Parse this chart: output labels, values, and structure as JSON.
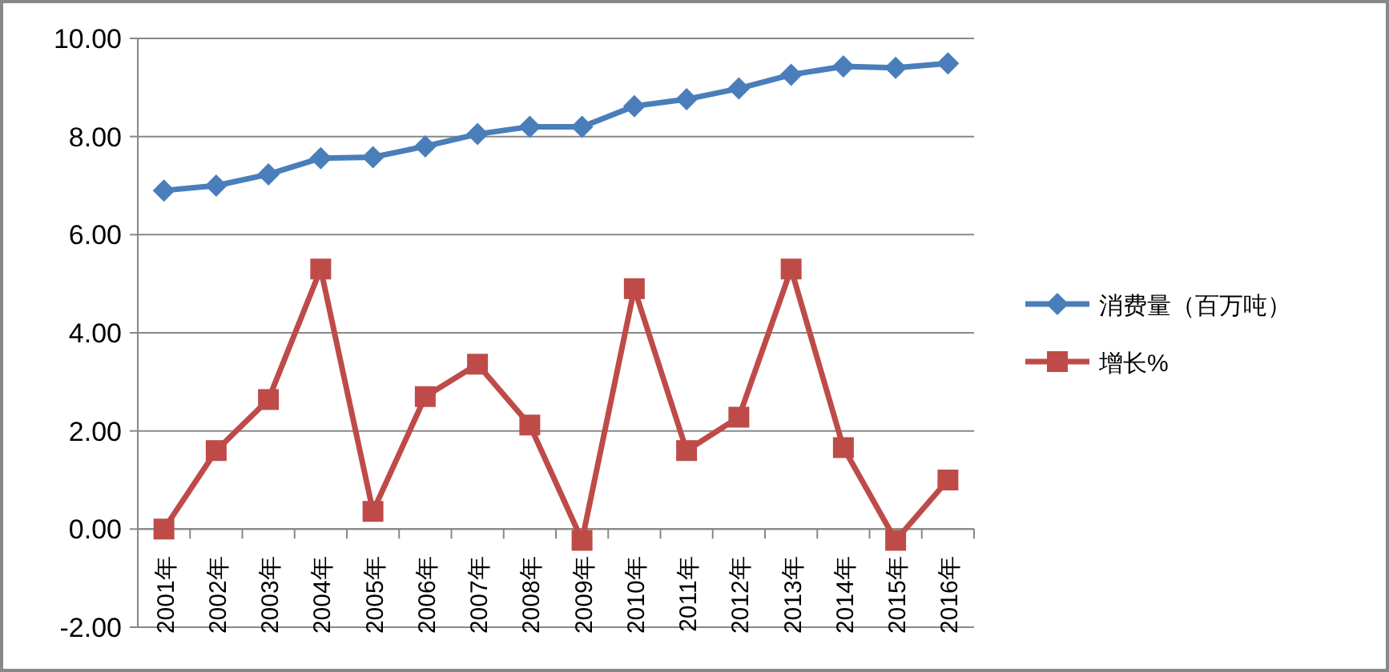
{
  "chart_data": {
    "type": "line",
    "categories": [
      "2001年",
      "2002年",
      "2003年",
      "2004年",
      "2005年",
      "2006年",
      "2007年",
      "2008年",
      "2009年",
      "2010年",
      "2011年",
      "2012年",
      "2013年",
      "2014年",
      "2015年",
      "2016年"
    ],
    "series": [
      {
        "name": "消费量（百万吨）",
        "color": "#4a7ebb",
        "marker": "diamond",
        "values": [
          6.9,
          7.0,
          7.23,
          7.56,
          7.58,
          7.8,
          8.05,
          8.2,
          8.2,
          8.62,
          8.76,
          8.98,
          9.26,
          9.43,
          9.4,
          9.49
        ]
      },
      {
        "name": "增长%",
        "color": "#be4b48",
        "marker": "square",
        "values": [
          0,
          1.6,
          2.64,
          5.3,
          0.36,
          2.7,
          3.36,
          2.12,
          -0.23,
          4.9,
          1.6,
          2.28,
          5.3,
          1.66,
          -0.23,
          1.0
        ]
      }
    ],
    "ylim": [
      -2,
      10
    ],
    "yticks": [
      {
        "value": -2,
        "label": "-2.00"
      },
      {
        "value": 0,
        "label": "0.00"
      },
      {
        "value": 2,
        "label": "2.00"
      },
      {
        "value": 4,
        "label": "4.00"
      },
      {
        "value": 6,
        "label": "6.00"
      },
      {
        "value": 8,
        "label": "8.00"
      },
      {
        "value": 10,
        "label": "10.00"
      }
    ],
    "grid": "y",
    "legend": "right"
  }
}
